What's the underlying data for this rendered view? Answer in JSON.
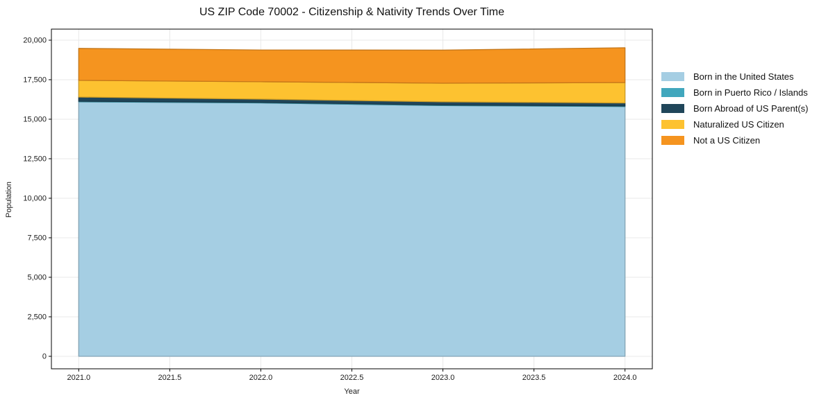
{
  "figure": {
    "background": "#ffffff"
  },
  "chart_data": {
    "type": "area",
    "stacked": true,
    "title": "US ZIP Code 70002 - Citizenship & Nativity Trends Over Time",
    "xlabel": "Year",
    "ylabel": "Population",
    "x": [
      2021,
      2022,
      2023,
      2024
    ],
    "series": [
      {
        "name": "Born in the United States",
        "color": "#a5cee3",
        "values": [
          16100,
          16030,
          15860,
          15800
        ]
      },
      {
        "name": "Born in Puerto Rico / Islands",
        "color": "#41a7bd",
        "values": [
          40,
          40,
          40,
          40
        ]
      },
      {
        "name": "Born Abroad of US Parent(s)",
        "color": "#20465a",
        "values": [
          260,
          200,
          200,
          190
        ]
      },
      {
        "name": "Naturalized US Citizen",
        "color": "#fdc230",
        "values": [
          1060,
          1100,
          1180,
          1290
        ]
      },
      {
        "name": "Not a US Citizen",
        "color": "#f5941f",
        "values": [
          2020,
          2010,
          2090,
          2200
        ]
      }
    ],
    "totals": [
      19480,
      19380,
      19370,
      19520
    ],
    "x_ticks": [
      {
        "v": 2021.0,
        "label": "2021.0"
      },
      {
        "v": 2021.5,
        "label": "2021.5"
      },
      {
        "v": 2022.0,
        "label": "2022.0"
      },
      {
        "v": 2022.5,
        "label": "2022.5"
      },
      {
        "v": 2023.0,
        "label": "2023.0"
      },
      {
        "v": 2023.5,
        "label": "2023.5"
      },
      {
        "v": 2024.0,
        "label": "2024.0"
      }
    ],
    "y_ticks": [
      {
        "v": 0,
        "label": "0"
      },
      {
        "v": 2500,
        "label": "2,500"
      },
      {
        "v": 5000,
        "label": "5,000"
      },
      {
        "v": 7500,
        "label": "7,500"
      },
      {
        "v": 10000,
        "label": "10,000"
      },
      {
        "v": 12500,
        "label": "12,500"
      },
      {
        "v": 15000,
        "label": "15,000"
      },
      {
        "v": 17500,
        "label": "17,500"
      },
      {
        "v": 20000,
        "label": "20,000"
      }
    ],
    "xlim": [
      2020.85,
      2024.15
    ],
    "ylim": [
      -790,
      20700
    ],
    "grid": true,
    "grid_color": "#e8e8e8",
    "legend_position": "outside-right"
  }
}
